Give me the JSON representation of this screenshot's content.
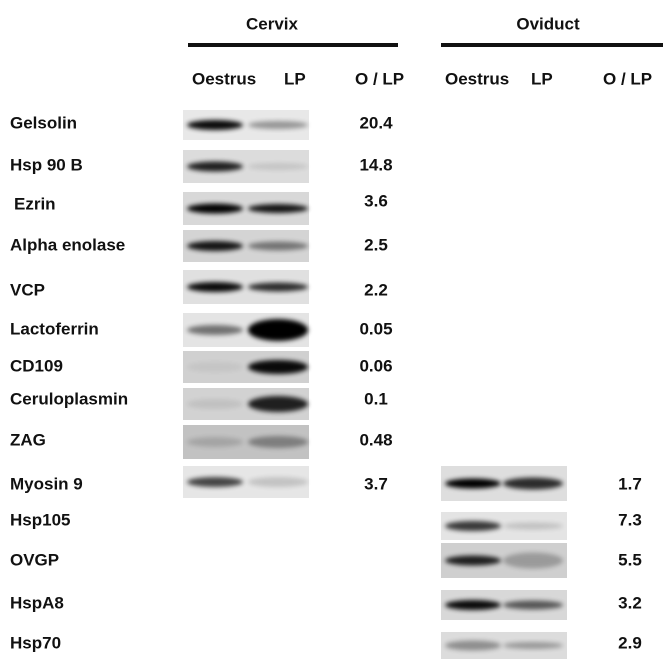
{
  "groups": [
    {
      "title": "Cervix",
      "columns": [
        "Oestrus",
        "LP",
        "O / LP"
      ]
    },
    {
      "title": "Oviduct",
      "columns": [
        "Oestrus",
        "LP",
        "O / LP"
      ]
    }
  ],
  "rows": [
    {
      "label": "Gelsolin",
      "cervix": 20.4
    },
    {
      "label": "Hsp 90 B",
      "cervix": 14.8
    },
    {
      "label": "Ezrin",
      "cervix": 3.6
    },
    {
      "label": "Alpha enolase",
      "cervix": 2.5
    },
    {
      "label": "VCP",
      "cervix": 2.2
    },
    {
      "label": "Lactoferrin",
      "cervix": 0.05
    },
    {
      "label": "CD109",
      "cervix": 0.06
    },
    {
      "label": "Ceruloplasmin",
      "cervix": 0.1
    },
    {
      "label": "ZAG",
      "cervix": 0.48
    },
    {
      "label": "Myosin 9",
      "cervix": 3.7,
      "oviduct": 1.7
    },
    {
      "label": "Hsp105",
      "oviduct": 7.3
    },
    {
      "label": "OVGP",
      "oviduct": 5.5
    },
    {
      "label": "HspA8",
      "oviduct": 3.2
    },
    {
      "label": "Hsp70",
      "oviduct": 2.9
    }
  ]
}
